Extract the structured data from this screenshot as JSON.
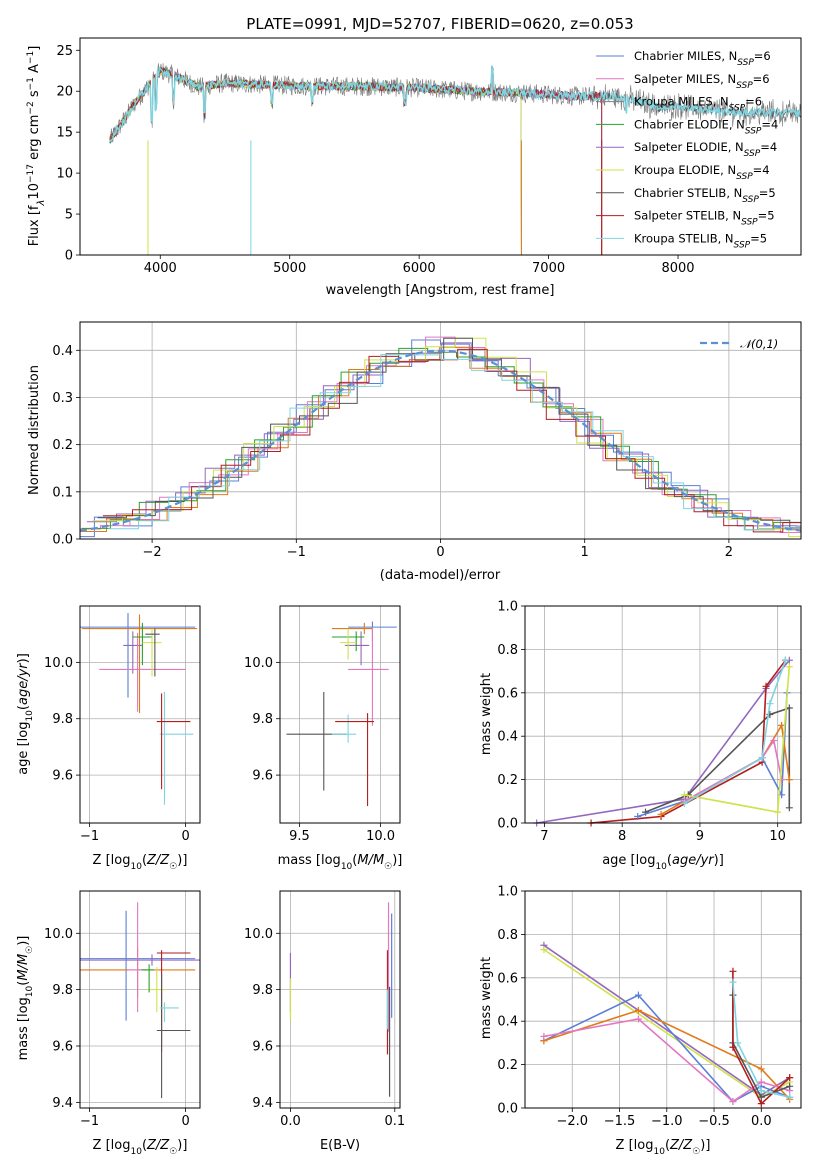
{
  "figure": {
    "title": "PLATE=0991, MJD=52707, FIBERID=0620, z=0.053"
  },
  "colors": {
    "chabrier_miles": "#5b7fd6",
    "salpeter_miles": "#e377c2",
    "kroupa_miles": "#7f7f7f",
    "chabrier_elodie": "#2ca02c",
    "salpeter_elodie": "#9467bd",
    "kroupa_elodie": "#cfe24a",
    "chabrier_stelib": "#555555",
    "salpeter_stelib": "#b21e1e",
    "kroupa_stelib": "#7fd4e0",
    "orange": "#e07a1a",
    "purple": "#8e2fb8",
    "gray": "#888888"
  },
  "chart_data": [
    {
      "id": "spectrum",
      "type": "line",
      "title": "PLATE=0991, MJD=52707, FIBERID=0620, z=0.053",
      "xlabel": "wavelength [Angstrom, rest frame]",
      "ylabel": "Flux [f_λ 10^-17 erg cm^-2 s^-1 A^-1]",
      "xlim": [
        3380,
        8950
      ],
      "ylim": [
        0,
        26.5
      ],
      "xticks": [
        "4000",
        "5000",
        "6000",
        "7000",
        "8000"
      ],
      "yticks": [
        "0",
        "5",
        "10",
        "15",
        "20",
        "25"
      ],
      "grid": false,
      "legend_position": "top-right",
      "legend": [
        "Chabrier MILES, N_SSP=6",
        "Salpeter MILES, N_SSP=6",
        "Kroupa MILES, N_SSP=6",
        "Chabrier ELODIE, N_SSP=4",
        "Salpeter ELODIE, N_SSP=4",
        "Kroupa ELODIE, N_SSP=4",
        "Chabrier STELIB, N_SSP=5",
        "Salpeter STELIB, N_SSP=5",
        "Kroupa STELIB, N_SSP=5"
      ],
      "continuum": {
        "x": [
          3610,
          3700,
          3800,
          3900,
          4000,
          4100,
          4300,
          4500,
          4800,
          5200,
          5600,
          6000,
          6400,
          6800,
          7200,
          7500,
          7700,
          7850,
          8000,
          8200,
          8500,
          8900
        ],
        "y": [
          14,
          16,
          18.5,
          20.5,
          22.5,
          22.0,
          20.5,
          21.0,
          20.8,
          20.6,
          20.6,
          20.4,
          20.0,
          19.8,
          19.4,
          19.4,
          18.8,
          18.0,
          18.2,
          17.8,
          17.4,
          17.3
        ]
      }
    },
    {
      "id": "residuals",
      "type": "line",
      "xlabel": "(data-model)/error",
      "ylabel": "Normed distribution",
      "xlim": [
        -2.5,
        2.5
      ],
      "ylim": [
        0,
        0.46
      ],
      "xticks": [
        "−2",
        "−1",
        "0",
        "1",
        "2"
      ],
      "yticks": [
        "0.0",
        "0.1",
        "0.2",
        "0.3",
        "0.4"
      ],
      "grid": true,
      "legend_position": "top-right",
      "legend": [
        "𝒩(0,1)"
      ],
      "normal_curve": {
        "mu": 0,
        "sigma": 1
      }
    },
    {
      "id": "age_vs_z",
      "type": "scatter",
      "xlabel": "Z [log10(Z/Z☉)]",
      "ylabel": "age [log10(age/yr)]",
      "xlim": [
        -1.1,
        0.15
      ],
      "ylim": [
        9.43,
        10.2
      ],
      "xticks": [
        "−1",
        "0"
      ],
      "yticks": [
        "9.6",
        "9.8",
        "10.0"
      ],
      "grid": true
    },
    {
      "id": "age_vs_mass",
      "type": "scatter",
      "xlabel": "mass [log10(M/M☉)]",
      "ylabel": "",
      "xlim": [
        9.38,
        10.12
      ],
      "ylim": [
        9.43,
        10.2
      ],
      "xticks": [
        "9.5",
        "10.0"
      ],
      "yticks": [
        "9.6",
        "9.8",
        "10.0"
      ],
      "grid": true
    },
    {
      "id": "weight_vs_age",
      "type": "line",
      "xlabel": "age [log10(age/yr)]",
      "ylabel": "mass weight",
      "xlim": [
        6.75,
        10.3
      ],
      "ylim": [
        0,
        1.0
      ],
      "xticks": [
        "7",
        "8",
        "9",
        "10"
      ],
      "yticks": [
        "0.0",
        "0.2",
        "0.4",
        "0.6",
        "0.8",
        "1.0"
      ],
      "grid": true
    },
    {
      "id": "mass_vs_z",
      "type": "scatter",
      "xlabel": "Z [log10(Z/Z☉)]",
      "ylabel": "mass [log10(M/M☉)]",
      "xlim": [
        -1.1,
        0.15
      ],
      "ylim": [
        9.38,
        10.15
      ],
      "xticks": [
        "−1",
        "0"
      ],
      "yticks": [
        "9.4",
        "9.6",
        "9.8",
        "10.0"
      ],
      "grid": true
    },
    {
      "id": "mass_vs_ebv",
      "type": "scatter",
      "xlabel": "E(B-V)",
      "ylabel": "",
      "xlim": [
        -0.01,
        0.105
      ],
      "ylim": [
        9.38,
        10.15
      ],
      "xticks": [
        "0.0",
        "0.1"
      ],
      "yticks": [
        "9.4",
        "9.6",
        "9.8",
        "10.0"
      ],
      "grid": true
    },
    {
      "id": "weight_vs_z",
      "type": "line",
      "xlabel": "Z [log10(Z/Z☉)]",
      "ylabel": "mass weight",
      "xlim": [
        -2.5,
        0.42
      ],
      "ylim": [
        0,
        1.0
      ],
      "xticks": [
        "−2.0",
        "−1.5",
        "−1.0",
        "−0.5",
        "0.0"
      ],
      "yticks": [
        "0.0",
        "0.2",
        "0.4",
        "0.6",
        "0.8",
        "1.0"
      ],
      "grid": true
    }
  ]
}
